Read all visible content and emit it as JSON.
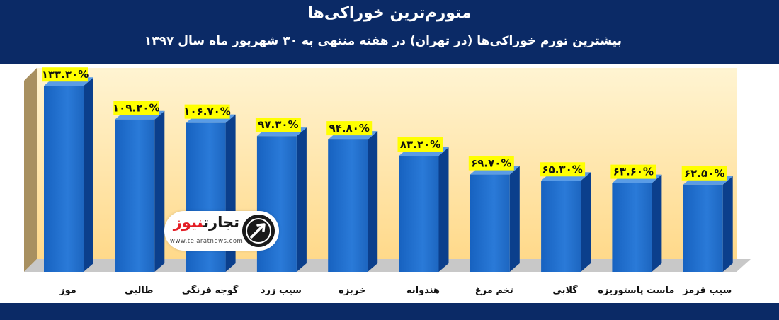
{
  "header": {
    "title": "متورم‌ترین خوراکی‌ها",
    "subtitle": "بیشترین تورم خوراکی‌ها (در تهران) در هفته منتهی به ۳۰ شهریور ماه سال ۱۳۹۷"
  },
  "logo": {
    "word1": "تجارت",
    "word2": "نیوز",
    "url": "www.tejaratnews.com"
  },
  "colors": {
    "header_bg": "#0b2a66",
    "bar": "#1f6bc4",
    "label_bg": "#ffff00",
    "chart_bg": "#ffe9a8"
  },
  "chart_data": {
    "type": "bar",
    "categories": [
      "موز",
      "طالبی",
      "گوجه فرنگی",
      "سیب زرد",
      "خربزه",
      "هندوانه",
      "تخم مرغ",
      "گلابی",
      "ماست پاستوریزه",
      "سیب قرمز"
    ],
    "values": [
      133.3,
      109.2,
      106.7,
      97.3,
      94.8,
      83.2,
      69.7,
      65.3,
      63.6,
      62.5
    ],
    "value_labels": [
      "۱۳۳.۳۰%",
      "۱۰۹.۲۰%",
      "۱۰۶.۷۰%",
      "۹۷.۳۰%",
      "۹۴.۸۰%",
      "۸۳.۲۰%",
      "۶۹.۷۰%",
      "۶۵.۳۰%",
      "۶۳.۶۰%",
      "۶۲.۵۰%"
    ],
    "ylim": [
      0,
      140
    ],
    "grid": false,
    "legend": "none"
  }
}
